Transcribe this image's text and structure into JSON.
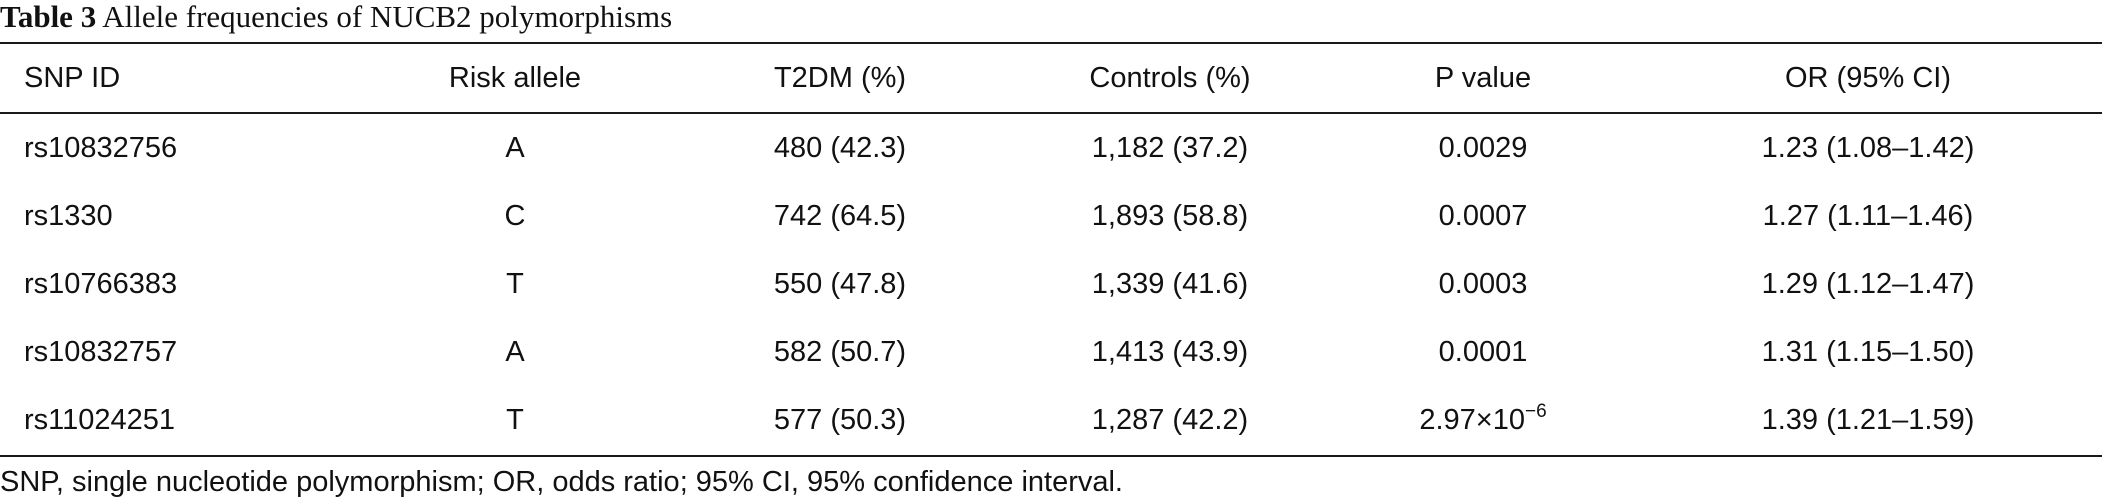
{
  "caption": {
    "label": "Table 3",
    "title": "Allele frequencies of NUCB2 polymorphisms"
  },
  "columns": [
    "SNP ID",
    "Risk allele",
    "T2DM (%)",
    "Controls (%)",
    "P value",
    "OR (95% CI)"
  ],
  "rows": [
    {
      "snp_id": "rs10832756",
      "risk_allele": "A",
      "t2dm": "480 (42.3)",
      "controls": "1,182 (37.2)",
      "p_value": "0.0029",
      "p_value_exp": "",
      "or_ci": "1.23 (1.08–1.42)"
    },
    {
      "snp_id": "rs1330",
      "risk_allele": "C",
      "t2dm": "742 (64.5)",
      "controls": "1,893 (58.8)",
      "p_value": "0.0007",
      "p_value_exp": "",
      "or_ci": "1.27 (1.11–1.46)"
    },
    {
      "snp_id": "rs10766383",
      "risk_allele": "T",
      "t2dm": "550 (47.8)",
      "controls": "1,339 (41.6)",
      "p_value": "0.0003",
      "p_value_exp": "",
      "or_ci": "1.29 (1.12–1.47)"
    },
    {
      "snp_id": "rs10832757",
      "risk_allele": "A",
      "t2dm": "582 (50.7)",
      "controls": "1,413 (43.9)",
      "p_value": "0.0001",
      "p_value_exp": "",
      "or_ci": "1.31 (1.15–1.50)"
    },
    {
      "snp_id": "rs11024251",
      "risk_allele": "T",
      "t2dm": "577 (50.3)",
      "controls": "1,287 (42.2)",
      "p_value": "2.97×10",
      "p_value_exp": "−6",
      "or_ci": "1.39 (1.21–1.59)"
    }
  ],
  "footnote": "SNP, single nucleotide polymorphism; OR, odds ratio; 95% CI, 95% confidence interval."
}
